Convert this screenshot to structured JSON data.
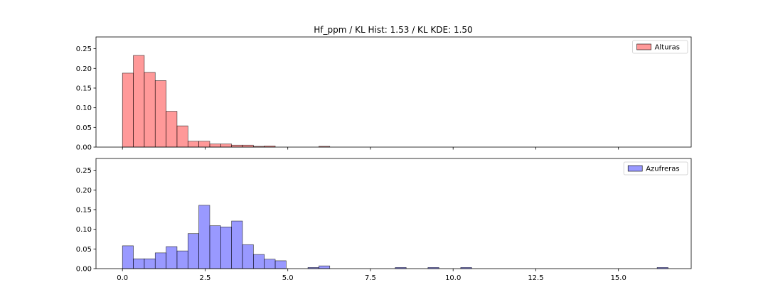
{
  "chart_data": {
    "type": "bar",
    "title": "Hf_ppm / KL Hist: 1.53 / KL KDE: 1.50",
    "xlim": [
      -0.8,
      17.2
    ],
    "ylim": [
      0,
      0.28
    ],
    "shared_x": true,
    "grid": false,
    "legend_position": "upper-right",
    "xticks": [
      "0.0",
      "2.5",
      "5.0",
      "7.5",
      "10.0",
      "12.5",
      "15.0"
    ],
    "xtick_values": [
      0,
      2.5,
      5,
      7.5,
      10,
      12.5,
      15
    ],
    "yticks": [
      "0.00",
      "0.05",
      "0.10",
      "0.15",
      "0.20",
      "0.25"
    ],
    "ytick_values": [
      0,
      0.05,
      0.1,
      0.15,
      0.2,
      0.25
    ],
    "panels": [
      {
        "name": "Alturas",
        "color": "#ff0000",
        "alpha": 0.4,
        "bins": [
          {
            "x0": 0.0,
            "x1": 0.33,
            "y": 0.188
          },
          {
            "x0": 0.33,
            "x1": 0.66,
            "y": 0.233
          },
          {
            "x0": 0.66,
            "x1": 0.99,
            "y": 0.19
          },
          {
            "x0": 0.99,
            "x1": 1.32,
            "y": 0.169
          },
          {
            "x0": 1.32,
            "x1": 1.65,
            "y": 0.091
          },
          {
            "x0": 1.65,
            "x1": 1.98,
            "y": 0.054
          },
          {
            "x0": 1.98,
            "x1": 2.31,
            "y": 0.015
          },
          {
            "x0": 2.31,
            "x1": 2.64,
            "y": 0.015
          },
          {
            "x0": 2.64,
            "x1": 2.97,
            "y": 0.008
          },
          {
            "x0": 2.97,
            "x1": 3.3,
            "y": 0.008
          },
          {
            "x0": 3.3,
            "x1": 3.63,
            "y": 0.005
          },
          {
            "x0": 3.63,
            "x1": 3.96,
            "y": 0.005
          },
          {
            "x0": 3.96,
            "x1": 4.29,
            "y": 0.002
          },
          {
            "x0": 4.29,
            "x1": 4.62,
            "y": 0.003
          },
          {
            "x0": 5.94,
            "x1": 6.27,
            "y": 0.002
          }
        ]
      },
      {
        "name": "Azufreras",
        "color": "#0000ff",
        "alpha": 0.4,
        "bins": [
          {
            "x0": 0.0,
            "x1": 0.33,
            "y": 0.058
          },
          {
            "x0": 0.33,
            "x1": 0.66,
            "y": 0.025
          },
          {
            "x0": 0.66,
            "x1": 0.99,
            "y": 0.025
          },
          {
            "x0": 0.99,
            "x1": 1.32,
            "y": 0.04
          },
          {
            "x0": 1.32,
            "x1": 1.65,
            "y": 0.056
          },
          {
            "x0": 1.65,
            "x1": 1.98,
            "y": 0.045
          },
          {
            "x0": 1.98,
            "x1": 2.31,
            "y": 0.089
          },
          {
            "x0": 2.31,
            "x1": 2.64,
            "y": 0.161
          },
          {
            "x0": 2.64,
            "x1": 2.97,
            "y": 0.109
          },
          {
            "x0": 2.97,
            "x1": 3.3,
            "y": 0.106
          },
          {
            "x0": 3.3,
            "x1": 3.63,
            "y": 0.121
          },
          {
            "x0": 3.63,
            "x1": 3.96,
            "y": 0.061
          },
          {
            "x0": 3.96,
            "x1": 4.29,
            "y": 0.036
          },
          {
            "x0": 4.29,
            "x1": 4.62,
            "y": 0.024
          },
          {
            "x0": 4.62,
            "x1": 4.95,
            "y": 0.02
          },
          {
            "x0": 5.61,
            "x1": 5.94,
            "y": 0.003
          },
          {
            "x0": 5.94,
            "x1": 6.27,
            "y": 0.007
          },
          {
            "x0": 8.25,
            "x1": 8.58,
            "y": 0.003
          },
          {
            "x0": 9.24,
            "x1": 9.57,
            "y": 0.003
          },
          {
            "x0": 10.23,
            "x1": 10.56,
            "y": 0.003
          },
          {
            "x0": 16.17,
            "x1": 16.5,
            "y": 0.003
          }
        ]
      }
    ]
  }
}
